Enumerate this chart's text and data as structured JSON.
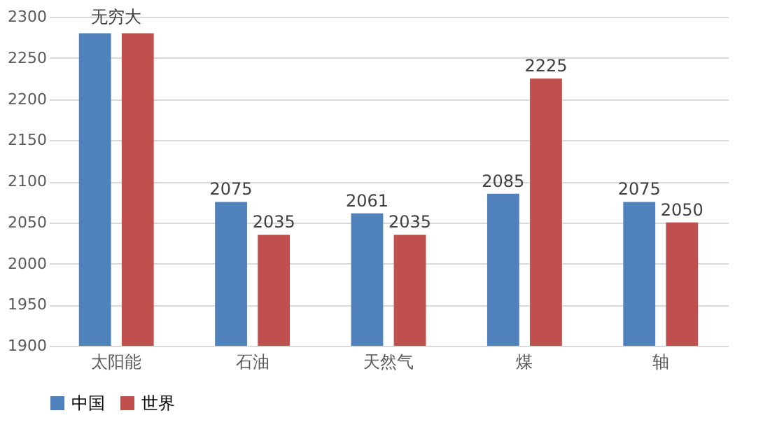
{
  "chart_data": {
    "type": "bar",
    "categories": [
      "太阳能",
      "石油",
      "天然气",
      "煤",
      "轴"
    ],
    "series": [
      {
        "name": "中国",
        "color": "#4f81bd",
        "values": [
          2280,
          2075,
          2061,
          2085,
          2075
        ],
        "value_labels": [
          null,
          "2075",
          "2061",
          "2085",
          "2075"
        ]
      },
      {
        "name": "世界",
        "color": "#c0504d",
        "values": [
          2280,
          2035,
          2035,
          2225,
          2050
        ],
        "value_labels": [
          null,
          "2035",
          "2035",
          "2225",
          "2050"
        ]
      }
    ],
    "annotations": [
      {
        "text": "无穷大",
        "x": "太阳能",
        "y": 2280
      }
    ],
    "ylim": [
      1900,
      2300
    ],
    "yticks": [
      1900,
      1950,
      2000,
      2050,
      2100,
      2150,
      2200,
      2250,
      2300
    ],
    "grid": "y",
    "legend": "bottom"
  }
}
